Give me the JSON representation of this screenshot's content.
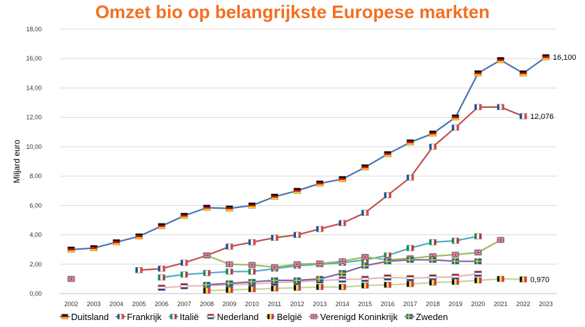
{
  "chart_data": {
    "type": "line",
    "title": "Omzet bio op belangrijkste Europese markten",
    "ylabel": "Miljard euro",
    "xlabel": "",
    "ylim": [
      0,
      18
    ],
    "yticks": [
      "0,00",
      "2,00",
      "4,00",
      "6,00",
      "8,00",
      "10,00",
      "12,00",
      "14,00",
      "16,00",
      "18,00"
    ],
    "x": [
      "2002",
      "2003",
      "2004",
      "2005",
      "2006",
      "2007",
      "2008",
      "2009",
      "2010",
      "2011",
      "2012",
      "2013",
      "2014",
      "2015",
      "2016",
      "2017",
      "2018",
      "2019",
      "2020",
      "2021",
      "2022",
      "2023"
    ],
    "legend_position": "bottom",
    "grid": true,
    "series": [
      {
        "name": "Duitsland",
        "color": "#4a72b0",
        "flag": "de",
        "values": [
          3.0,
          3.1,
          3.5,
          3.9,
          4.6,
          5.3,
          5.85,
          5.8,
          6.0,
          6.6,
          7.0,
          7.5,
          7.8,
          8.6,
          9.5,
          10.3,
          10.9,
          12.0,
          15.0,
          15.9,
          15.0,
          16.1
        ]
      },
      {
        "name": "Frankrijk",
        "color": "#c0504d",
        "flag": "fr",
        "values": [
          null,
          null,
          null,
          1.6,
          1.7,
          2.1,
          2.6,
          3.2,
          3.5,
          3.8,
          4.0,
          4.4,
          4.8,
          5.5,
          6.7,
          7.9,
          10.0,
          11.3,
          12.7,
          12.7,
          12.076,
          null
        ]
      },
      {
        "name": "Italië",
        "color": "#4bacc6",
        "flag": "it",
        "values": [
          null,
          null,
          null,
          null,
          1.1,
          1.3,
          1.4,
          1.5,
          1.5,
          1.7,
          1.9,
          2.0,
          2.1,
          2.3,
          2.6,
          3.1,
          3.5,
          3.6,
          3.9,
          null,
          null,
          null
        ]
      },
      {
        "name": "Nederland",
        "color": "#e6b9b8",
        "flag": "nl",
        "values": [
          null,
          null,
          null,
          null,
          0.4,
          0.5,
          0.55,
          0.6,
          0.65,
          0.75,
          0.8,
          0.9,
          0.95,
          1.0,
          1.1,
          1.05,
          1.1,
          1.15,
          1.35,
          null,
          null,
          null
        ]
      },
      {
        "name": "België",
        "color": "#c3d69b",
        "flag": "be",
        "values": [
          null,
          null,
          null,
          null,
          null,
          null,
          0.2,
          0.25,
          0.3,
          0.35,
          0.4,
          0.45,
          0.45,
          0.55,
          0.6,
          0.65,
          0.75,
          0.8,
          0.9,
          1.0,
          0.97,
          null
        ]
      },
      {
        "name": "Verenigd Koninkrijk",
        "color": "#9bbb59",
        "flag": "uk",
        "values": [
          1.0,
          null,
          null,
          null,
          null,
          null,
          2.6,
          2.0,
          1.95,
          1.8,
          2.0,
          2.05,
          2.2,
          2.5,
          2.3,
          2.4,
          2.55,
          2.65,
          2.8,
          3.65,
          null,
          null
        ]
      },
      {
        "name": "Zweden",
        "color": "#8064a2",
        "flag": "se",
        "values": [
          null,
          null,
          null,
          null,
          null,
          null,
          0.6,
          0.7,
          0.8,
          0.9,
          0.9,
          1.0,
          1.4,
          1.9,
          2.2,
          2.3,
          2.3,
          2.2,
          2.2,
          null,
          null,
          null
        ]
      }
    ],
    "data_labels": [
      {
        "series": "Duitsland",
        "x": "2023",
        "text": "16,100"
      },
      {
        "series": "Frankrijk",
        "x": "2022",
        "text": "12,076"
      },
      {
        "series": "België",
        "x": "2022",
        "text": "0,970"
      }
    ]
  }
}
